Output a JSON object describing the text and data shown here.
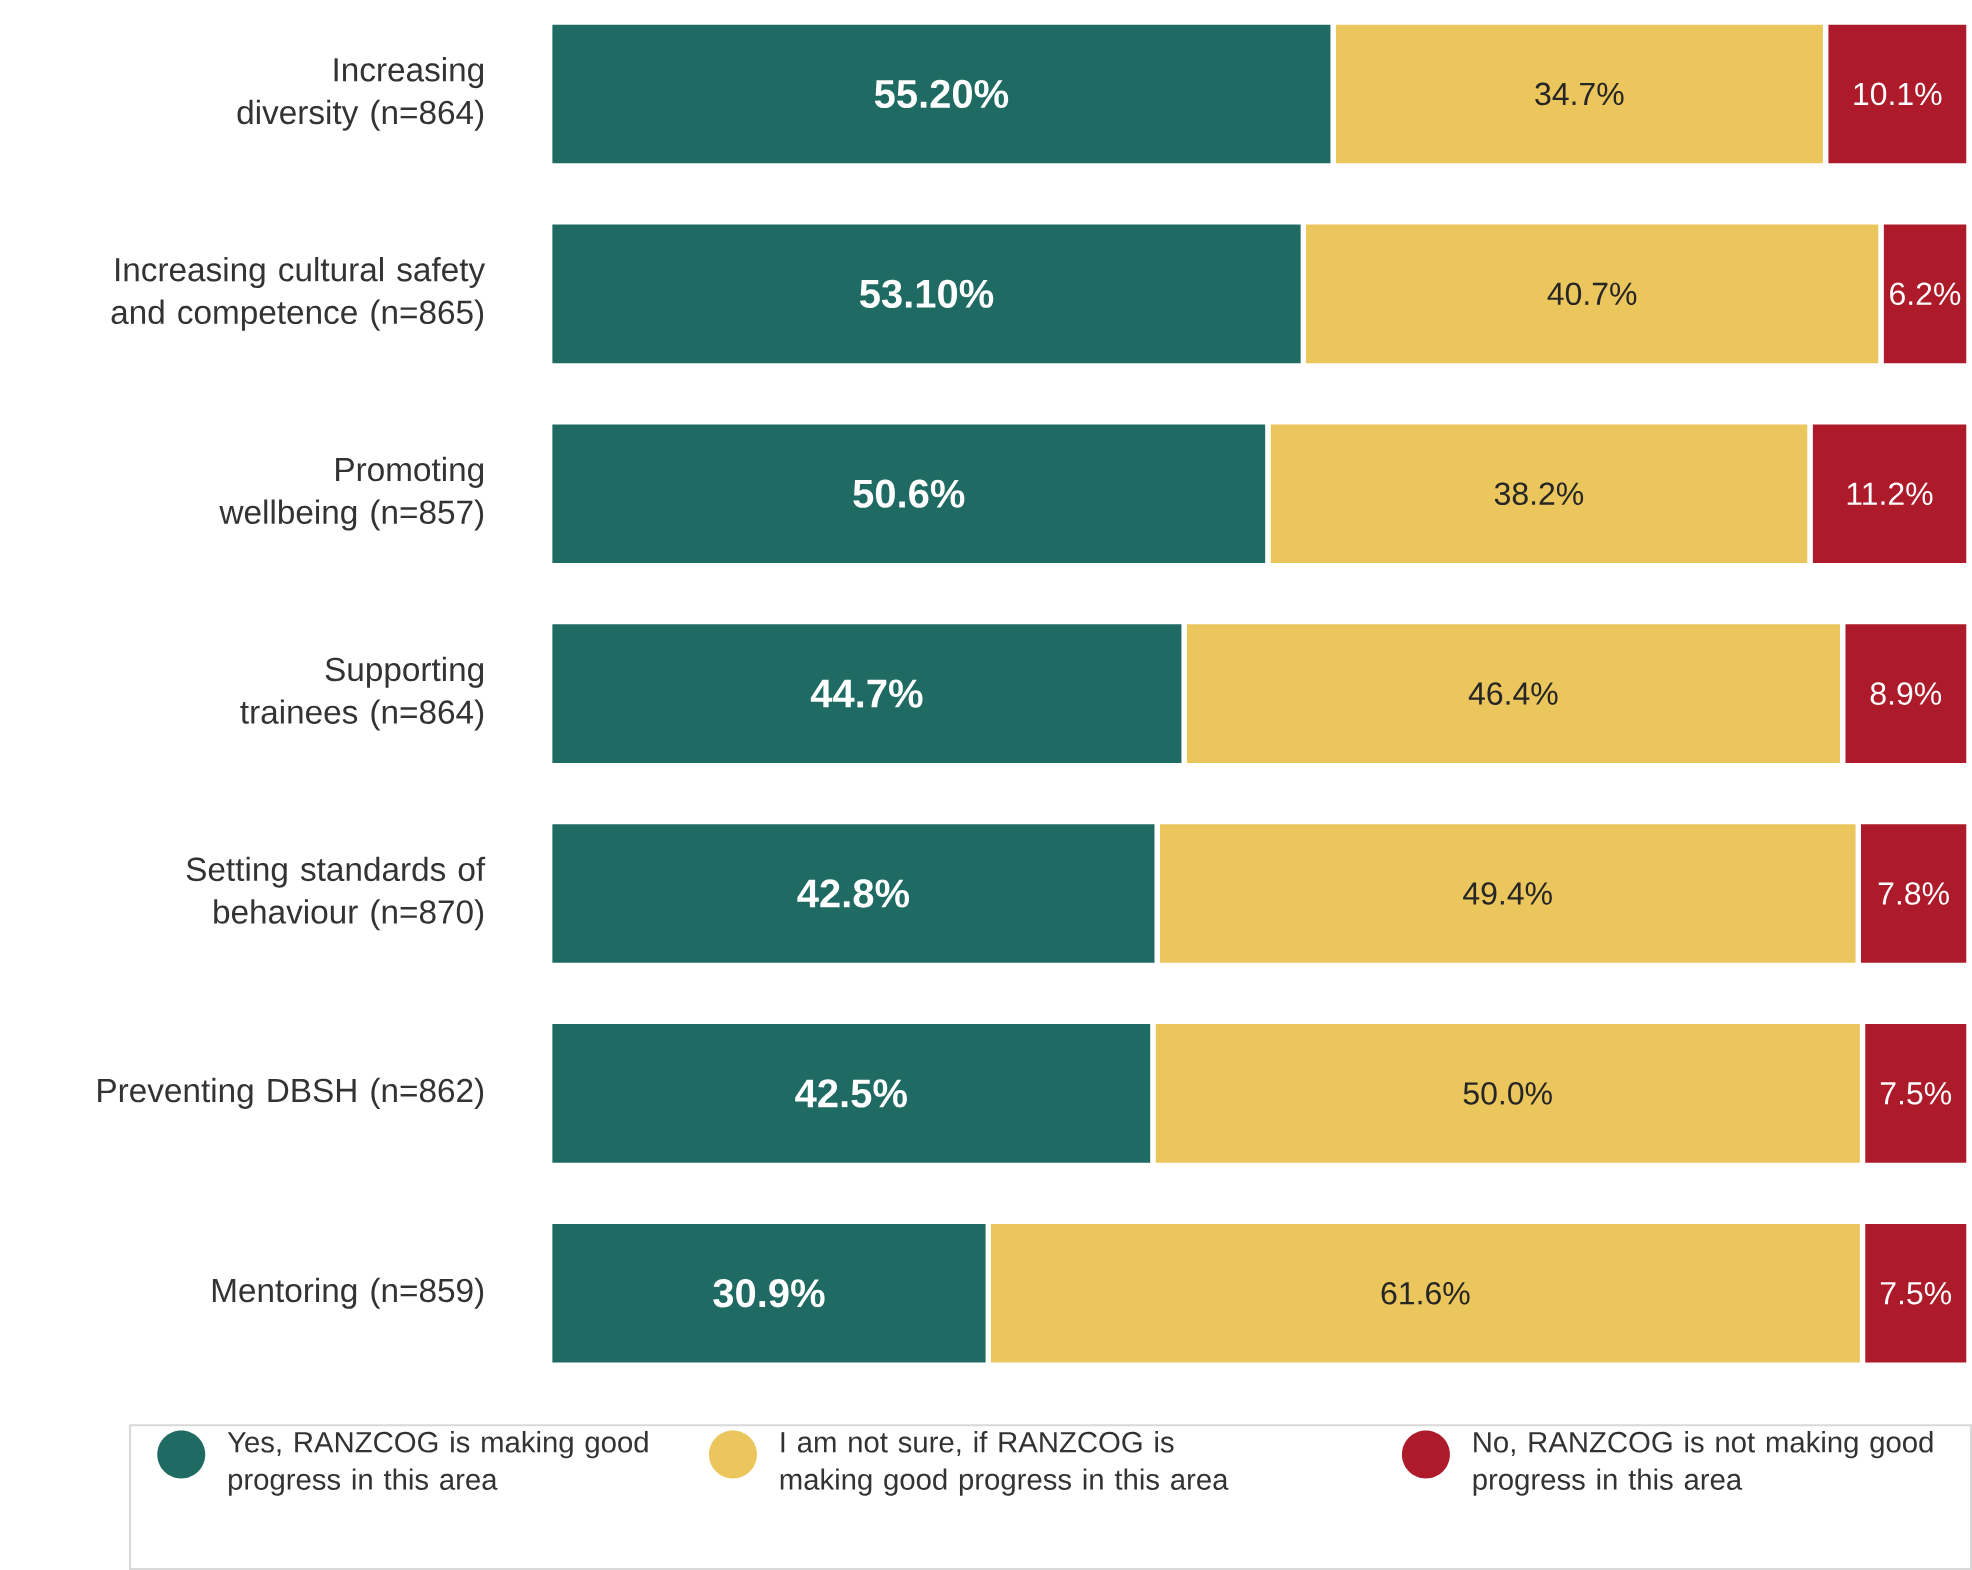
{
  "chart_data": {
    "type": "bar",
    "orientation": "horizontal",
    "stacked": true,
    "legend": "bottom",
    "categories": [
      "Increasing diversity (n=864)",
      "Increasing cultural safety and competence (n=865)",
      "Promoting wellbeing (n=857)",
      "Supporting trainees (n=864)",
      "Setting standards of behaviour (n=870)",
      "Preventing DBSH (n=862)",
      "Mentoring (n=859)"
    ],
    "series": [
      {
        "name": "Yes, RANZCOG is making good progress in this area",
        "color": "#1f6b63",
        "values": [
          55.2,
          53.1,
          50.6,
          44.7,
          42.8,
          42.5,
          30.9
        ],
        "value_labels": [
          "55.20%",
          "53.10%",
          "50.6%",
          "44.7%",
          "42.8%",
          "42.5%",
          "30.9%"
        ]
      },
      {
        "name": "I am not sure, if RANZCOG is making good progress in this area",
        "color": "#ebc65c",
        "values": [
          34.7,
          40.7,
          38.2,
          46.4,
          49.4,
          50.0,
          61.6
        ],
        "value_labels": [
          "34.7%",
          "40.7%",
          "38.2%",
          "46.4%",
          "49.4%",
          "50.0%",
          "61.6%"
        ]
      },
      {
        "name": "No, RANZCOG is not making good progress in this area",
        "color": "#ad1a2a",
        "values": [
          10.1,
          6.2,
          11.2,
          8.9,
          7.8,
          7.5,
          7.5
        ],
        "value_labels": [
          "10.1%",
          "6.2%",
          "11.2%",
          "8.9%",
          "7.8%",
          "7.5%",
          "7.5%"
        ]
      }
    ]
  }
}
